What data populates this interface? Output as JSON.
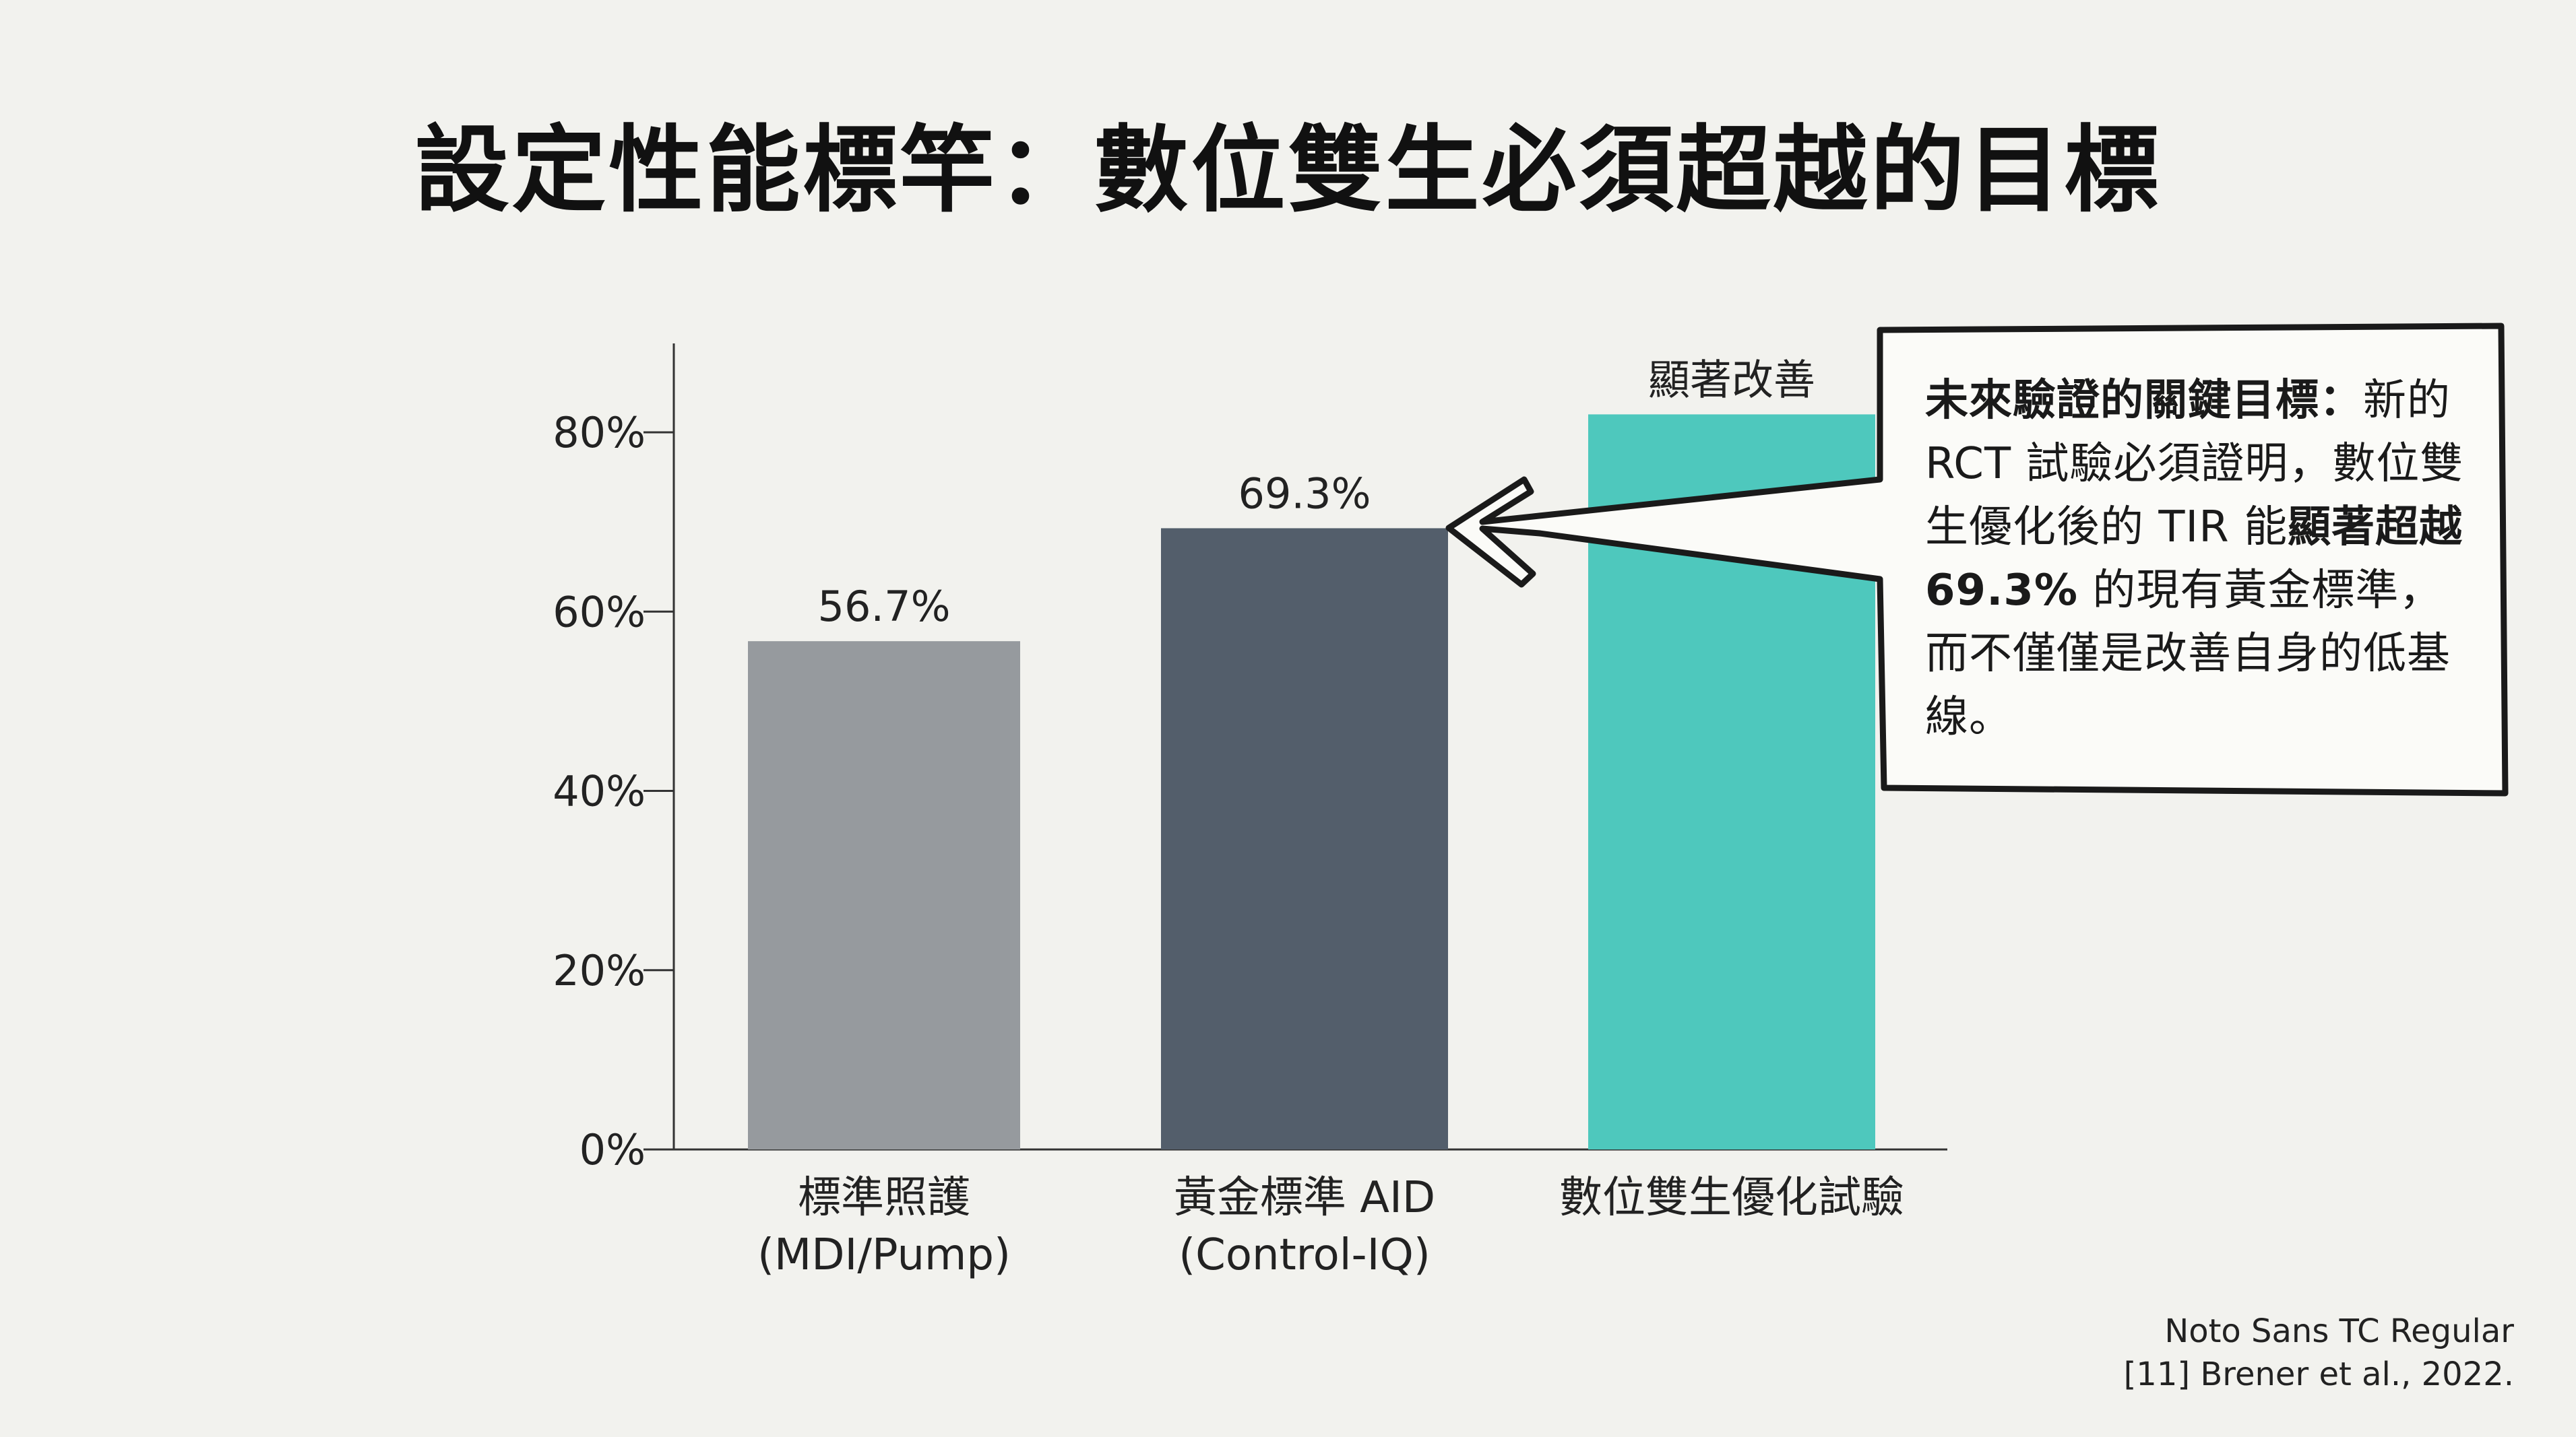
{
  "title": "設定性能標竿：數位雙生必須超越的目標",
  "chart_data": {
    "type": "bar",
    "categories": [
      [
        "標準照護",
        "(MDI/Pump)"
      ],
      [
        "黃金標準 AID",
        "(Control-IQ)"
      ],
      [
        "數位雙生優化試驗"
      ]
    ],
    "values": [
      56.7,
      69.3,
      82
    ],
    "value_labels": [
      "56.7%",
      "69.3%",
      "顯著改善"
    ],
    "colors": [
      "#969a9e",
      "#535e6b",
      "#4ec8bd"
    ],
    "ylim": [
      0,
      80
    ],
    "yticks": [
      0,
      20,
      40,
      60,
      80
    ],
    "ytick_labels": [
      "0%",
      "20%",
      "40%",
      "60%",
      "80%"
    ],
    "grid": false
  },
  "callout": {
    "heading": "未來驗證的關鍵目標：",
    "text1": "新的 RCT 試驗必須證明，數位雙生優化後的 TIR 能",
    "emphasis": "顯著超越 69.3%",
    "text2": " 的現有黃金標準，而不僅僅是改善自身的低基線。"
  },
  "source": {
    "font_note": "Noto Sans TC Regular",
    "citation": "[11] Brener et al., 2022."
  }
}
